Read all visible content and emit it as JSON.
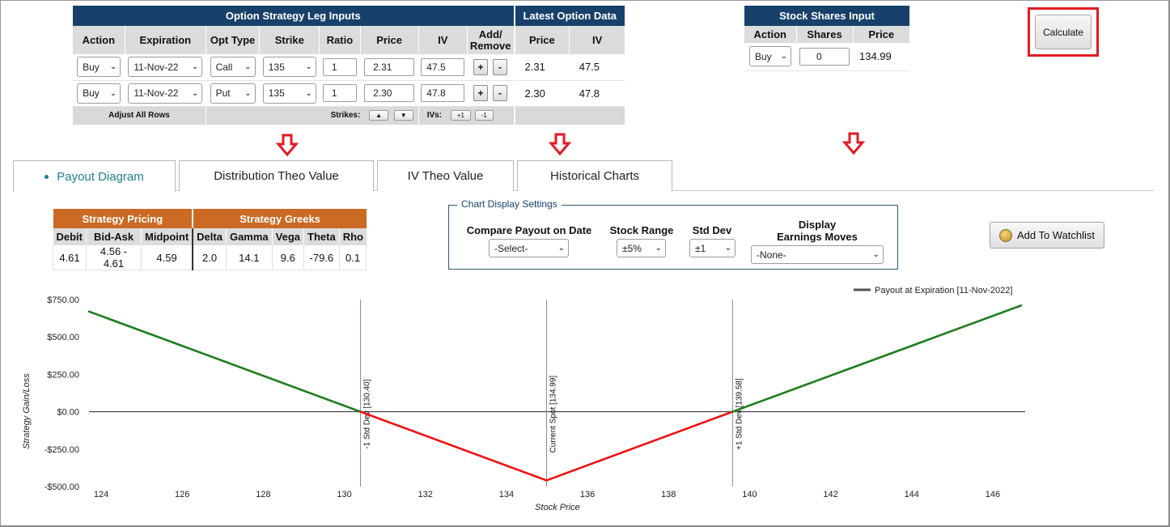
{
  "legs_panel": {
    "title": "Option Strategy Leg Inputs",
    "latest_title": "Latest Option Data",
    "columns": [
      "Action",
      "Expiration",
      "Opt Type",
      "Strike",
      "Ratio",
      "Price",
      "IV",
      "Add/\nRemove"
    ],
    "latest_columns": [
      "Price",
      "IV"
    ],
    "rows": [
      {
        "action": "Buy",
        "expiration": "11-Nov-22",
        "type": "Call",
        "strike": "135",
        "ratio": "1",
        "price": "2.31",
        "iv": "47.5",
        "add": "+",
        "remove": "-",
        "latest_price": "2.31",
        "latest_iv": "47.5"
      },
      {
        "action": "Buy",
        "expiration": "11-Nov-22",
        "type": "Put",
        "strike": "135",
        "ratio": "1",
        "price": "2.30",
        "iv": "47.8",
        "add": "+",
        "remove": "-",
        "latest_price": "2.30",
        "latest_iv": "47.8"
      }
    ],
    "adjust_label": "Adjust All Rows",
    "strikes_label": "Strikes:",
    "strike_up": "▲",
    "strike_down": "▼",
    "ivs_label": "IVs:",
    "iv_up": "+1",
    "iv_down": "-1"
  },
  "shares_panel": {
    "title": "Stock Shares Input",
    "columns": [
      "Action",
      "Shares",
      "Price"
    ],
    "action": "Buy",
    "shares": "0",
    "price": "134.99"
  },
  "calculate_label": "Calculate",
  "tabs": [
    {
      "label": "Payout Diagram",
      "active": true
    },
    {
      "label": "Distribution Theo Value",
      "active": false
    },
    {
      "label": "IV Theo Value",
      "active": false
    },
    {
      "label": "Historical Charts",
      "active": false
    }
  ],
  "pricing": {
    "title": "Strategy Pricing",
    "columns": [
      "Debit",
      "Bid-Ask",
      "Midpoint"
    ],
    "values": [
      "4.61",
      "4.56 - 4.61",
      "4.59"
    ]
  },
  "greeks": {
    "title": "Strategy Greeks",
    "columns": [
      "Delta",
      "Gamma",
      "Vega",
      "Theta",
      "Rho"
    ],
    "values": [
      "2.0",
      "14.1",
      "9.6",
      "-79.6",
      "0.1"
    ]
  },
  "settings": {
    "legend": "Chart Display Settings",
    "compare_label": "Compare Payout on Date",
    "compare_value": "-Select-",
    "range_label": "Stock Range",
    "range_value": "±5%",
    "stddev_label": "Std Dev",
    "stddev_value": "±1",
    "earnings_label_1": "Display",
    "earnings_label_2": "Earnings Moves",
    "earnings_value": "-None-"
  },
  "watchlist_label": "Add To Watchlist",
  "colors": {
    "navy": "#17416a",
    "orange": "#cb6a24",
    "accent_teal": "#20808a",
    "highlight_red": "#e21b23",
    "profit_green": "#1e7d1e",
    "loss_red": "#ee1111"
  },
  "chart_data": {
    "type": "line",
    "xlabel": "Stock Price",
    "ylabel": "Strategy Gain/Loss",
    "xlim": [
      123.7,
      146.8
    ],
    "ylim": [
      -500,
      750
    ],
    "x_ticks": [
      124,
      126,
      128,
      130,
      132,
      134,
      136,
      138,
      140,
      142,
      144,
      146
    ],
    "y_ticks": [
      -500,
      -250,
      0,
      250,
      500,
      750
    ],
    "y_tick_labels": [
      "-$500.00",
      "-$250.00",
      "$0.00",
      "$250.00",
      "$500.00",
      "$750.00"
    ],
    "legend_position": "top-right",
    "series": [
      {
        "name": "Payout at Expiration [11-Nov-2022]",
        "x": [
          123.7,
          130.4,
          134.99,
          139.58,
          146.7
        ],
        "y": [
          670,
          0,
          -459,
          0,
          710
        ]
      }
    ],
    "vertical_markers": [
      {
        "x": 130.4,
        "label": "-1 Std Dev [130.40]"
      },
      {
        "x": 134.99,
        "label": "Current Spot [134.99]"
      },
      {
        "x": 139.58,
        "label": "+1 Std Dev [139.58]"
      }
    ]
  }
}
